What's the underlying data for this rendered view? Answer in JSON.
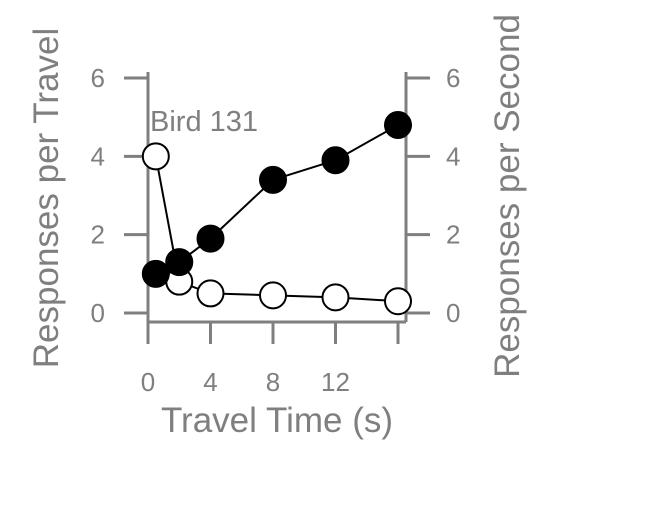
{
  "chart_data": {
    "type": "line",
    "xlabel": "Travel Time (s)",
    "ylabel_left": "Responses per Travel",
    "ylabel_right": "Responses per Second",
    "annotation": "Bird 131",
    "x_ticks": [
      0,
      4,
      8,
      12
    ],
    "y_ticks": [
      0,
      2,
      4,
      6
    ],
    "xlim": [
      0,
      16
    ],
    "ylim": [
      0,
      6
    ],
    "series": [
      {
        "axis": "left",
        "marker": "filled-circle",
        "color": "#000000",
        "x": [
          0.5,
          2,
          4,
          8,
          12,
          16
        ],
        "y": [
          1.0,
          1.3,
          1.9,
          3.4,
          3.9,
          4.8
        ]
      },
      {
        "axis": "right",
        "marker": "open-circle",
        "color": "#000000",
        "x": [
          0.5,
          2,
          4,
          8,
          12,
          16
        ],
        "y": [
          4.0,
          0.8,
          0.5,
          0.45,
          0.4,
          0.3
        ]
      }
    ]
  }
}
